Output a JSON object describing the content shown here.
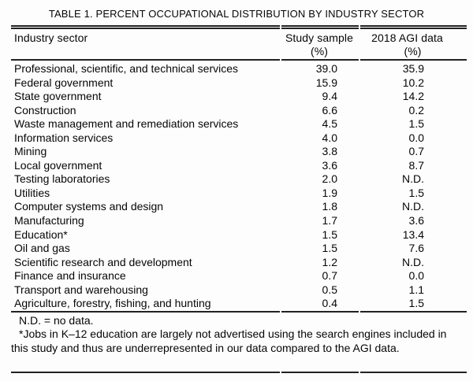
{
  "title": "TABLE 1. PERCENT OCCUPATIONAL DISTRIBUTION BY INDUSTRY SECTOR",
  "table": {
    "col1_header": "Industry sector",
    "col2_header": "Study sample",
    "col3_header": "2018 AGI data",
    "unit_label": "(%)",
    "rows": [
      {
        "sector": "Professional, scientific, and technical services",
        "study_pct": "39.0",
        "agi_pct": "35.9"
      },
      {
        "sector": "Federal government",
        "study_pct": "15.9",
        "agi_pct": "10.2"
      },
      {
        "sector": "State government",
        "study_pct": "9.4",
        "agi_pct": "14.2"
      },
      {
        "sector": "Construction",
        "study_pct": "6.6",
        "agi_pct": "0.2"
      },
      {
        "sector": "Waste management and remediation services",
        "study_pct": "4.5",
        "agi_pct": "1.5"
      },
      {
        "sector": "Information services",
        "study_pct": "4.0",
        "agi_pct": "0.0"
      },
      {
        "sector": "Mining",
        "study_pct": "3.8",
        "agi_pct": "0.7"
      },
      {
        "sector": "Local government",
        "study_pct": "3.6",
        "agi_pct": "8.7"
      },
      {
        "sector": "Testing laboratories",
        "study_pct": "2.0",
        "agi_pct": "N.D."
      },
      {
        "sector": "Utilities",
        "study_pct": "1.9",
        "agi_pct": "1.5"
      },
      {
        "sector": "Computer systems and design",
        "study_pct": "1.8",
        "agi_pct": "N.D."
      },
      {
        "sector": "Manufacturing",
        "study_pct": "1.7",
        "agi_pct": "3.6"
      },
      {
        "sector": "Education*",
        "study_pct": "1.5",
        "agi_pct": "13.4"
      },
      {
        "sector": "Oil and gas",
        "study_pct": "1.5",
        "agi_pct": "7.6"
      },
      {
        "sector": "Scientific research and development",
        "study_pct": "1.2",
        "agi_pct": "N.D."
      },
      {
        "sector": "Finance and insurance",
        "study_pct": "0.7",
        "agi_pct": "0.0"
      },
      {
        "sector": "Transport and warehousing",
        "study_pct": "0.5",
        "agi_pct": "1.1"
      },
      {
        "sector": "Agriculture, forestry, fishing, and hunting",
        "study_pct": "0.4",
        "agi_pct": "1.5"
      }
    ]
  },
  "notes": {
    "nd_note": "N.D. = no data.",
    "education_note": "*Jobs in K–12 education are largely not advertised using the search engines included in this study and thus are underrepresented in our data compared to the AGI data."
  },
  "chart_data": {
    "type": "table",
    "title": "TABLE 1. PERCENT OCCUPATIONAL DISTRIBUTION BY INDUSTRY SECTOR",
    "columns": [
      "Industry sector",
      "Study sample (%)",
      "2018 AGI data (%)"
    ],
    "categories": [
      "Professional, scientific, and technical services",
      "Federal government",
      "State government",
      "Construction",
      "Waste management and remediation services",
      "Information services",
      "Mining",
      "Local government",
      "Testing laboratories",
      "Utilities",
      "Computer systems and design",
      "Manufacturing",
      "Education*",
      "Oil and gas",
      "Scientific research and development",
      "Finance and insurance",
      "Transport and warehousing",
      "Agriculture, forestry, fishing, and hunting"
    ],
    "series": [
      {
        "name": "Study sample (%)",
        "values": [
          39.0,
          15.9,
          9.4,
          6.6,
          4.5,
          4.0,
          3.8,
          3.6,
          2.0,
          1.9,
          1.8,
          1.7,
          1.5,
          1.5,
          1.2,
          0.7,
          0.5,
          0.4
        ]
      },
      {
        "name": "2018 AGI data (%)",
        "values": [
          35.9,
          10.2,
          14.2,
          0.2,
          1.5,
          0.0,
          0.7,
          8.7,
          null,
          1.5,
          null,
          3.6,
          13.4,
          7.6,
          null,
          0.0,
          1.1,
          1.5
        ]
      }
    ],
    "no_data_marker": "N.D."
  }
}
